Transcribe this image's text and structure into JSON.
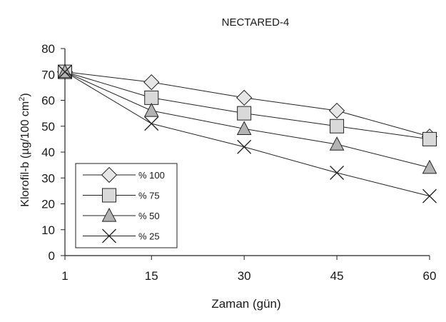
{
  "chart_data": {
    "type": "line",
    "title": "NECTARED-4",
    "xlabel": "Zaman (gün)",
    "ylabel_prefix": "Klorofil-b (µg/100 cm",
    "ylabel_sup": "2",
    "ylabel_suffix": ")",
    "x": [
      1,
      15,
      30,
      45,
      60
    ],
    "x_tick_labels": [
      "1",
      "15",
      "30",
      "45",
      "60"
    ],
    "y_ticks": [
      0,
      10,
      20,
      30,
      40,
      50,
      60,
      70,
      80
    ],
    "ylim": [
      0,
      80
    ],
    "grid": false,
    "legend_position": "lower-left",
    "series": [
      {
        "name": "% 100",
        "marker": "diamond",
        "fill": "#e6e6e6",
        "values": [
          71,
          67,
          61,
          56,
          46
        ]
      },
      {
        "name": "% 75",
        "marker": "square",
        "fill": "#d9d9d9",
        "values": [
          71,
          61,
          55,
          50,
          45
        ]
      },
      {
        "name": "% 50",
        "marker": "triangle",
        "fill": "#b3b3b3",
        "values": [
          71,
          56,
          49,
          43,
          34
        ]
      },
      {
        "name": "% 25",
        "marker": "cross",
        "fill": "none",
        "values": [
          71,
          51,
          42,
          32,
          23
        ]
      }
    ],
    "line_color": "#222222"
  }
}
